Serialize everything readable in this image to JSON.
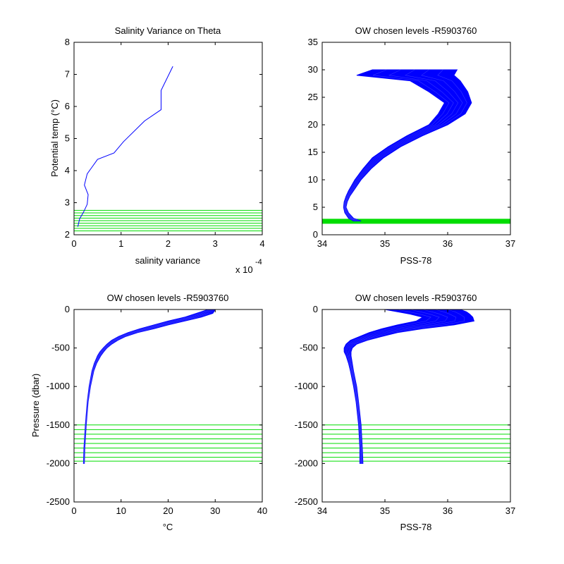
{
  "chart_data": [
    {
      "type": "line",
      "title": "Salinity Variance on Theta",
      "xlabel": "salinity variance",
      "ylabel": "Potential temp (°C)",
      "x_exponent_label": "x 10",
      "x_exponent": "-4",
      "xlim": [
        0,
        4
      ],
      "ylim": [
        2,
        8
      ],
      "xticks": [
        "0",
        "1",
        "2",
        "3",
        "4"
      ],
      "yticks": [
        "2",
        "3",
        "4",
        "5",
        "6",
        "7",
        "8"
      ],
      "series": [
        {
          "color": "#0000ff",
          "x": [
            0.08,
            0.12,
            0.2,
            0.28,
            0.3,
            0.22,
            0.28,
            0.5,
            0.85,
            1.05,
            1.5,
            1.85,
            1.85,
            2.1
          ],
          "y": [
            2.25,
            2.5,
            2.7,
            2.95,
            3.25,
            3.55,
            3.9,
            4.35,
            4.55,
            4.9,
            5.55,
            5.9,
            6.5,
            7.25
          ]
        }
      ],
      "chosen_levels": {
        "color": "#00dd00",
        "values": [
          2.12,
          2.2,
          2.28,
          2.36,
          2.44,
          2.52,
          2.6,
          2.68,
          2.76
        ]
      }
    },
    {
      "type": "line",
      "title": "OW chosen levels -R5903760",
      "xlabel": "PSS-78",
      "ylabel": "",
      "xlim": [
        34,
        37
      ],
      "ylim": [
        0,
        35
      ],
      "xticks": [
        "34",
        "35",
        "36",
        "37"
      ],
      "yticks": [
        "0",
        "5",
        "10",
        "15",
        "20",
        "25",
        "30",
        "35"
      ],
      "profile_envelope": {
        "color": "#0000ff",
        "y": [
          2.5,
          3,
          4,
          5,
          6,
          7,
          8,
          10,
          12,
          14,
          16,
          18,
          20,
          22,
          24,
          26,
          28,
          29,
          30
        ],
        "x_min": [
          34.5,
          34.42,
          34.36,
          34.34,
          34.35,
          34.38,
          34.42,
          34.52,
          34.65,
          34.8,
          35.05,
          35.35,
          35.7,
          35.85,
          35.95,
          35.7,
          35.4,
          34.55,
          34.8
        ],
        "x_max": [
          34.62,
          34.5,
          34.42,
          34.38,
          34.4,
          34.44,
          34.5,
          34.62,
          34.78,
          34.98,
          35.25,
          35.6,
          36.0,
          36.28,
          36.38,
          36.32,
          36.2,
          36.1,
          36.15
        ]
      },
      "chosen_levels": {
        "color": "#00dd00",
        "values": [
          2.1,
          2.2,
          2.3,
          2.4,
          2.5,
          2.6,
          2.7,
          2.8
        ]
      }
    },
    {
      "type": "line",
      "title": "OW chosen levels -R5903760",
      "xlabel": "°C",
      "ylabel": "Pressure (dbar)",
      "xlim": [
        0,
        40
      ],
      "ylim": [
        -2500,
        0
      ],
      "xticks": [
        "0",
        "10",
        "20",
        "30",
        "40"
      ],
      "yticks": [
        "0",
        "-500",
        "-1000",
        "-1500",
        "-2000",
        "-2500"
      ],
      "profile_envelope": {
        "color": "#0000ff",
        "y": [
          0,
          -50,
          -100,
          -150,
          -200,
          -250,
          -300,
          -350,
          -400,
          -450,
          -500,
          -550,
          -600,
          -700,
          -800,
          -1000,
          -1200,
          -1500,
          -1800,
          -2000
        ],
        "x_min": [
          28.5,
          26,
          23.5,
          20,
          17,
          14,
          11.5,
          9.5,
          8,
          7,
          6.2,
          5.5,
          5,
          4.3,
          3.8,
          3.2,
          2.8,
          2.4,
          2.1,
          2.0
        ],
        "x_max": [
          30,
          29.5,
          27,
          23.5,
          20,
          17,
          13.5,
          11,
          9.3,
          8,
          7,
          6.3,
          5.7,
          4.8,
          4.2,
          3.5,
          3.0,
          2.6,
          2.3,
          2.2
        ]
      },
      "chosen_levels": {
        "color": "#00dd00",
        "values": [
          -1500,
          -1560,
          -1620,
          -1680,
          -1740,
          -1800,
          -1860,
          -1920,
          -1970
        ]
      }
    },
    {
      "type": "line",
      "title": "OW chosen levels -R5903760",
      "xlabel": "PSS-78",
      "ylabel": "",
      "xlim": [
        34,
        37
      ],
      "ylim": [
        -2500,
        0
      ],
      "xticks": [
        "34",
        "35",
        "36",
        "37"
      ],
      "yticks": [
        "0",
        "-500",
        "-1000",
        "-1500",
        "-2000",
        "-2500"
      ],
      "profile_envelope": {
        "color": "#0000ff",
        "y": [
          0,
          -30,
          -60,
          -100,
          -150,
          -200,
          -250,
          -300,
          -350,
          -400,
          -450,
          -500,
          -550,
          -600,
          -700,
          -800,
          -1000,
          -1200,
          -1500,
          -1800,
          -2000
        ],
        "x_min": [
          35.0,
          35.2,
          35.4,
          35.6,
          35.5,
          35.2,
          34.95,
          34.75,
          34.6,
          34.45,
          34.38,
          34.35,
          34.35,
          34.38,
          34.42,
          34.45,
          34.5,
          34.54,
          34.58,
          34.6,
          34.6
        ],
        "x_max": [
          36.2,
          36.3,
          36.35,
          36.4,
          36.42,
          36.1,
          35.6,
          35.2,
          34.95,
          34.72,
          34.55,
          34.48,
          34.46,
          34.46,
          34.48,
          34.5,
          34.55,
          34.58,
          34.62,
          34.64,
          34.65
        ]
      },
      "chosen_levels": {
        "color": "#00dd00",
        "values": [
          -1500,
          -1560,
          -1620,
          -1680,
          -1740,
          -1800,
          -1860,
          -1920,
          -1970
        ]
      }
    }
  ]
}
